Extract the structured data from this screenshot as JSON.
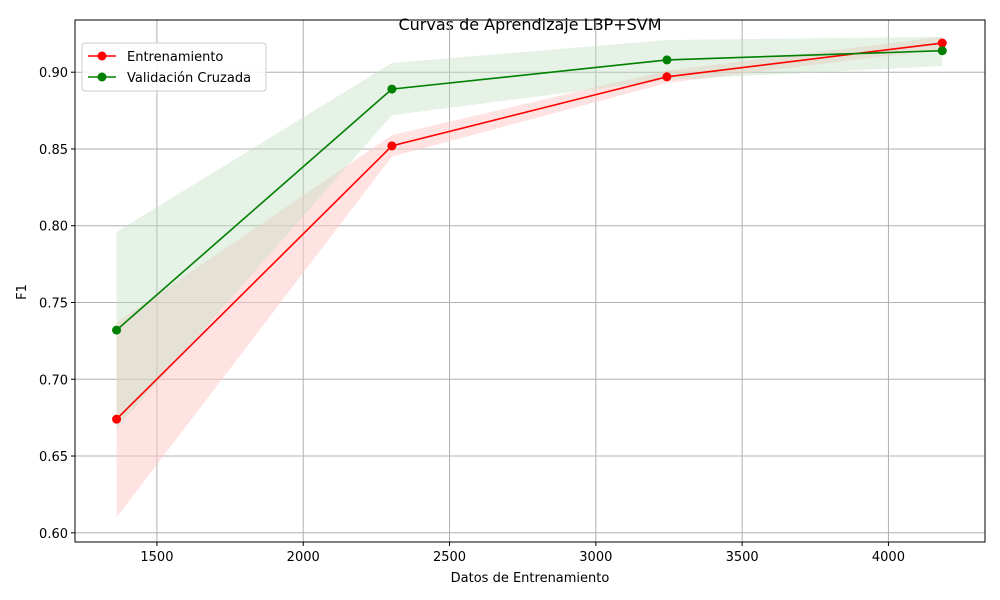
{
  "chart_data": {
    "type": "line",
    "title": "Curvas de Aprendizaje LBP+SVM",
    "xlabel": "Datos de Entrenamiento",
    "ylabel": "F1",
    "xlim": [
      1220,
      4330
    ],
    "ylim": [
      0.594,
      0.934
    ],
    "grid": true,
    "legend_position": "top-left",
    "x": [
      1362,
      2303,
      3243,
      4184
    ],
    "x_ticks": [
      1500,
      2000,
      2500,
      3000,
      3500,
      4000
    ],
    "y_ticks": [
      0.6,
      0.65,
      0.7,
      0.75,
      0.8,
      0.85,
      0.9
    ],
    "y_tick_labels": [
      "0.60",
      "0.65",
      "0.70",
      "0.75",
      "0.80",
      "0.85",
      "0.90"
    ],
    "series": [
      {
        "name": "Entrenamiento",
        "color": "#ff0000",
        "band_color": "#ffcccc",
        "values": [
          0.674,
          0.852,
          0.897,
          0.919
        ],
        "lower": [
          0.61,
          0.845,
          0.893,
          0.915
        ],
        "upper": [
          0.737,
          0.859,
          0.901,
          0.923
        ]
      },
      {
        "name": "Validación Cruzada",
        "color": "#008000",
        "band_color": "#bfdfbf",
        "values": [
          0.732,
          0.889,
          0.908,
          0.914
        ],
        "lower": [
          0.668,
          0.872,
          0.895,
          0.904
        ],
        "upper": [
          0.796,
          0.906,
          0.921,
          0.923
        ]
      }
    ]
  }
}
